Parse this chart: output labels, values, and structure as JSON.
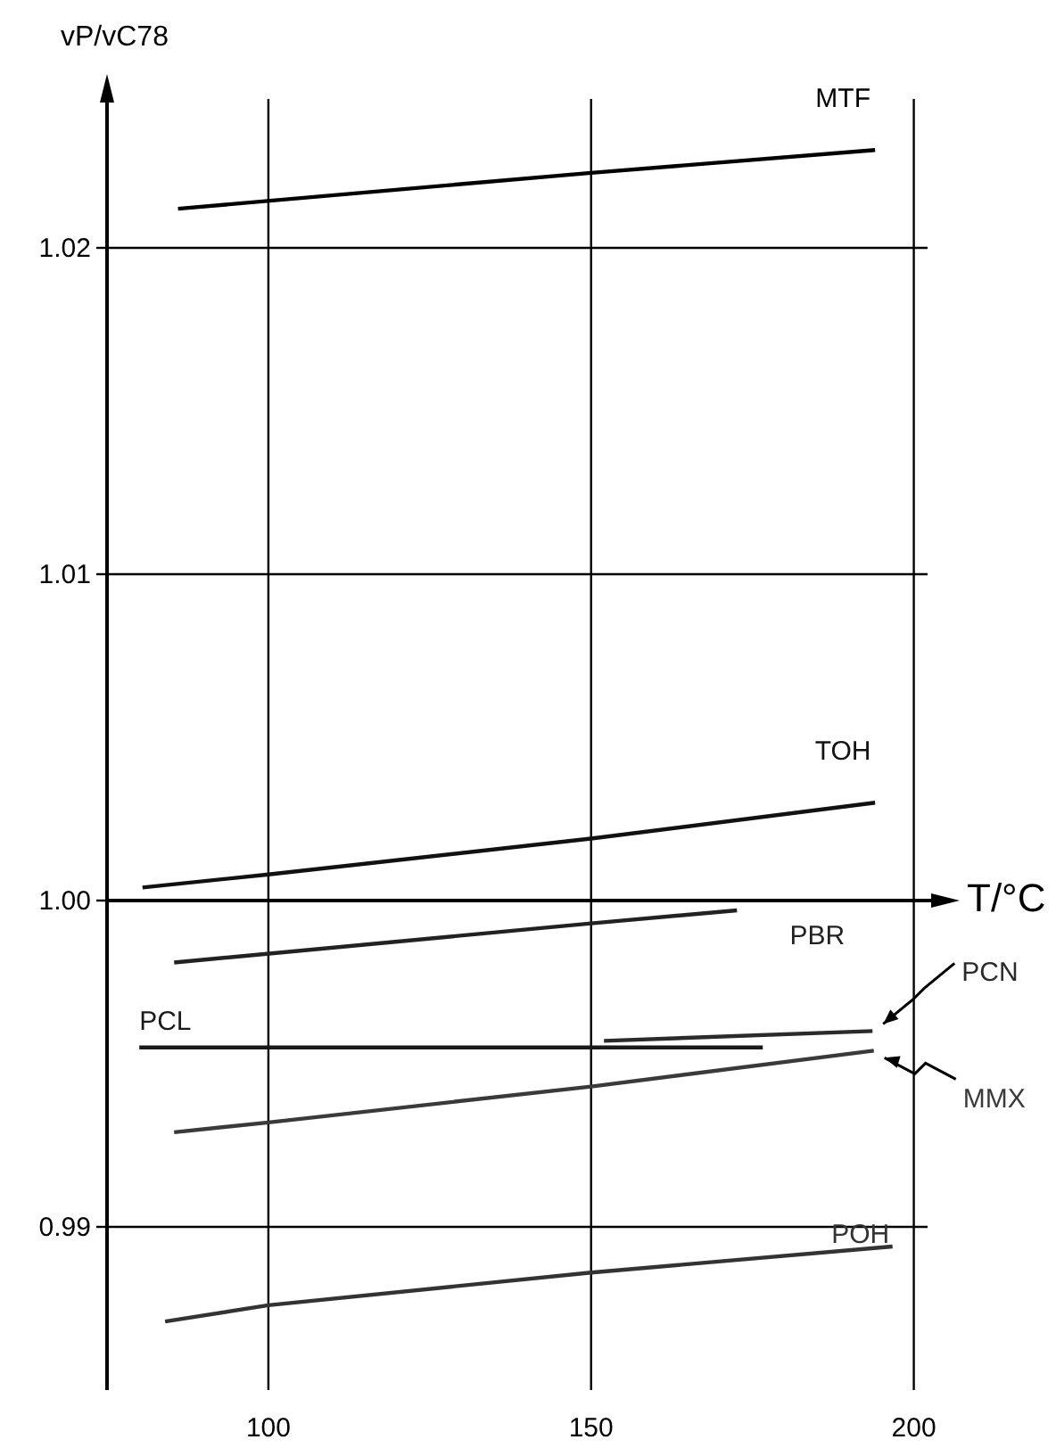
{
  "chart_data": {
    "type": "line",
    "xlabel": "T/°C",
    "ylabel": "vP/vC78",
    "xlim": [
      75,
      206
    ],
    "ylim": [
      0.985,
      1.025
    ],
    "xticks": [
      100,
      150,
      200
    ],
    "yticks": [
      0.99,
      {
        "value": 1,
        "label": "1.00"
      },
      1.01,
      1.02
    ],
    "grid": true,
    "ref_lines": [
      {
        "axis": "y",
        "value": 1,
        "color": "#000000"
      }
    ],
    "series": [
      {
        "name": "MTF",
        "color": "#000000",
        "x": [
          86,
          150,
          194
        ],
        "values": [
          1.0212,
          1.0223,
          1.023
        ]
      },
      {
        "name": "TOH",
        "color": "#111111",
        "x": [
          80.5,
          100,
          150,
          194
        ],
        "values": [
          1.0004,
          1.0008,
          1.0019,
          1.003
        ]
      },
      {
        "name": "PBR",
        "color": "#222222",
        "x": [
          85.4,
          150,
          172.6
        ],
        "values": [
          0.9981,
          0.9993,
          0.9997
        ]
      },
      {
        "name": "PCN",
        "color": "#2b2b2b",
        "x": [
          152,
          193.6
        ],
        "values": [
          0.9957,
          0.996
        ]
      },
      {
        "name": "MMX",
        "color": "#3a3a3a",
        "x": [
          85.4,
          100,
          150,
          193.8
        ],
        "values": [
          0.9929,
          0.9932,
          0.9943,
          0.9954
        ]
      },
      {
        "name": "PCL",
        "color": "#1a1a1a",
        "x": [
          80,
          176.6
        ],
        "values": [
          0.9955,
          0.9955
        ]
      },
      {
        "name": "POH",
        "color": "#333333",
        "x": [
          84,
          100,
          150,
          196.7
        ],
        "values": [
          0.9871,
          0.9876,
          0.9886,
          0.9894
        ]
      }
    ]
  }
}
